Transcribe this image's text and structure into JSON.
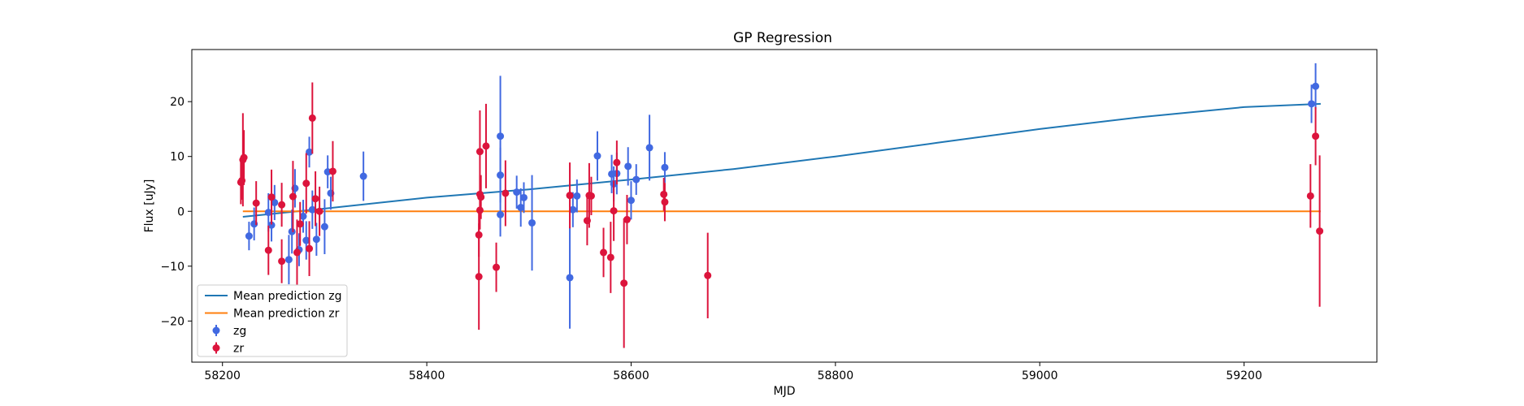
{
  "chart_data": {
    "type": "scatter",
    "title": "GP Regression",
    "xlabel": "MJD",
    "ylabel": "Flux [uJy]",
    "xlim": [
      58170,
      59330
    ],
    "ylim": [
      -27.5,
      29.5
    ],
    "xticks": [
      58200,
      58400,
      58600,
      58800,
      59000,
      59200
    ],
    "yticks": [
      -20,
      -10,
      0,
      10,
      20
    ],
    "grid": false,
    "legend_position": "lower-left",
    "legend": {
      "entries": [
        {
          "label": "Mean prediction zg",
          "kind": "line",
          "color": "#1f77b4"
        },
        {
          "label": "Mean prediction zr",
          "kind": "line",
          "color": "#ff7f0e"
        },
        {
          "label": "zg",
          "kind": "errorbar",
          "color": "#4169e1"
        },
        {
          "label": "zr",
          "kind": "errorbar",
          "color": "#dc143c"
        }
      ]
    },
    "lines": [
      {
        "name": "Mean prediction zg",
        "color": "#1f77b4",
        "x": [
          58220,
          58300,
          58400,
          58500,
          58600,
          58700,
          58800,
          58900,
          59000,
          59100,
          59200,
          59275
        ],
        "y": [
          -1.0,
          0.5,
          2.5,
          4.0,
          5.8,
          7.7,
          10.0,
          12.5,
          15.0,
          17.2,
          19.0,
          19.6
        ]
      },
      {
        "name": "Mean prediction zr",
        "color": "#ff7f0e",
        "x": [
          58220,
          59275
        ],
        "y": [
          0.0,
          0.0
        ]
      }
    ],
    "series": [
      {
        "name": "zg",
        "color": "#4169e1",
        "points": [
          {
            "x": 58226,
            "y": -4.5,
            "err": 2.6
          },
          {
            "x": 58231,
            "y": -2.3,
            "err": 3.0
          },
          {
            "x": 58245,
            "y": -0.2,
            "err": 3.5
          },
          {
            "x": 58248,
            "y": -2.5,
            "err": 3.0
          },
          {
            "x": 58251,
            "y": 1.6,
            "err": 3.2
          },
          {
            "x": 58265,
            "y": -8.8,
            "err": 4.5
          },
          {
            "x": 58268,
            "y": -3.7,
            "err": 4.0
          },
          {
            "x": 58271,
            "y": 4.2,
            "err": 3.5
          },
          {
            "x": 58275,
            "y": -7.0,
            "err": 3.0
          },
          {
            "x": 58279,
            "y": -0.9,
            "err": 3.0
          },
          {
            "x": 58282,
            "y": -5.3,
            "err": 3.5
          },
          {
            "x": 58285,
            "y": 10.8,
            "err": 2.8
          },
          {
            "x": 58288,
            "y": 0.3,
            "err": 3.5
          },
          {
            "x": 58292,
            "y": -5.1,
            "err": 3.0
          },
          {
            "x": 58300,
            "y": -2.8,
            "err": 5.0
          },
          {
            "x": 58303,
            "y": 7.2,
            "err": 3.0
          },
          {
            "x": 58306,
            "y": 3.3,
            "err": 3.0
          },
          {
            "x": 58338,
            "y": 6.4,
            "err": 4.5
          },
          {
            "x": 58472,
            "y": 13.7,
            "err": 11.0
          },
          {
            "x": 58472,
            "y": 6.6,
            "err": 5.0
          },
          {
            "x": 58472,
            "y": -0.6,
            "err": 4.0
          },
          {
            "x": 58488,
            "y": 3.5,
            "err": 3.0
          },
          {
            "x": 58492,
            "y": 0.7,
            "err": 3.5
          },
          {
            "x": 58495,
            "y": 2.5,
            "err": 2.8
          },
          {
            "x": 58503,
            "y": -2.1,
            "err": 8.7
          },
          {
            "x": 58540,
            "y": -12.1,
            "err": 9.3
          },
          {
            "x": 58543,
            "y": 0.3,
            "err": 3.2
          },
          {
            "x": 58547,
            "y": 2.8,
            "err": 3.0
          },
          {
            "x": 58567,
            "y": 10.1,
            "err": 4.5
          },
          {
            "x": 58581,
            "y": 6.8,
            "err": 3.5
          },
          {
            "x": 58583,
            "y": 5.0,
            "err": 3.2
          },
          {
            "x": 58586,
            "y": 6.9,
            "err": 3.8
          },
          {
            "x": 58597,
            "y": 8.2,
            "err": 3.5
          },
          {
            "x": 58600,
            "y": 2.0,
            "err": 3.5
          },
          {
            "x": 58605,
            "y": 5.8,
            "err": 2.8
          },
          {
            "x": 58618,
            "y": 11.6,
            "err": 6.0
          },
          {
            "x": 58633,
            "y": 8.0,
            "err": 2.8
          },
          {
            "x": 59266,
            "y": 19.6,
            "err": 3.5
          },
          {
            "x": 59270,
            "y": 22.8,
            "err": 4.2
          }
        ]
      },
      {
        "name": "zr",
        "color": "#dc143c",
        "points": [
          {
            "x": 58218,
            "y": 5.3,
            "err": 4.0
          },
          {
            "x": 58219,
            "y": 5.6,
            "err": 3.5
          },
          {
            "x": 58220,
            "y": 9.4,
            "err": 8.5
          },
          {
            "x": 58221,
            "y": 9.8,
            "err": 5.0
          },
          {
            "x": 58233,
            "y": 1.5,
            "err": 4.0
          },
          {
            "x": 58245,
            "y": -7.1,
            "err": 4.5
          },
          {
            "x": 58248,
            "y": 2.6,
            "err": 5.0
          },
          {
            "x": 58258,
            "y": -9.1,
            "err": 4.0
          },
          {
            "x": 58258,
            "y": 1.2,
            "err": 4.0
          },
          {
            "x": 58269,
            "y": 2.7,
            "err": 6.5
          },
          {
            "x": 58273,
            "y": -7.5,
            "err": 6.0
          },
          {
            "x": 58276,
            "y": -2.3,
            "err": 4.0
          },
          {
            "x": 58282,
            "y": 5.1,
            "err": 5.5
          },
          {
            "x": 58285,
            "y": -6.8,
            "err": 5.0
          },
          {
            "x": 58288,
            "y": 17.0,
            "err": 6.5
          },
          {
            "x": 58291,
            "y": 2.3,
            "err": 5.0
          },
          {
            "x": 58295,
            "y": 0.0,
            "err": 4.5
          },
          {
            "x": 58308,
            "y": 7.3,
            "err": 5.5
          },
          {
            "x": 58451,
            "y": -11.9,
            "err": 9.7
          },
          {
            "x": 58451,
            "y": -4.3,
            "err": 4.0
          },
          {
            "x": 58452,
            "y": 0.2,
            "err": 3.5
          },
          {
            "x": 58452,
            "y": 3.1,
            "err": 3.5
          },
          {
            "x": 58453,
            "y": 2.6,
            "err": 4.0
          },
          {
            "x": 58452,
            "y": 10.9,
            "err": 7.5
          },
          {
            "x": 58458,
            "y": 11.9,
            "err": 7.7
          },
          {
            "x": 58468,
            "y": -10.2,
            "err": 4.5
          },
          {
            "x": 58477,
            "y": 3.3,
            "err": 6.0
          },
          {
            "x": 58540,
            "y": 2.9,
            "err": 6.0
          },
          {
            "x": 58557,
            "y": -1.7,
            "err": 4.5
          },
          {
            "x": 58559,
            "y": 2.9,
            "err": 5.9
          },
          {
            "x": 58561,
            "y": 2.8,
            "err": 3.5
          },
          {
            "x": 58573,
            "y": -7.5,
            "err": 4.5
          },
          {
            "x": 58580,
            "y": -8.4,
            "err": 6.5
          },
          {
            "x": 58583,
            "y": 0.1,
            "err": 5.5
          },
          {
            "x": 58586,
            "y": 8.9,
            "err": 4.0
          },
          {
            "x": 58593,
            "y": -13.1,
            "err": 11.8
          },
          {
            "x": 58596,
            "y": -1.5,
            "err": 4.5
          },
          {
            "x": 58632,
            "y": 3.1,
            "err": 3.0
          },
          {
            "x": 58633,
            "y": 1.7,
            "err": 3.5
          },
          {
            "x": 58675,
            "y": -11.7,
            "err": 7.8
          },
          {
            "x": 59265,
            "y": 2.8,
            "err": 5.8
          },
          {
            "x": 59270,
            "y": 13.7,
            "err": 5.3
          },
          {
            "x": 59274,
            "y": -3.6,
            "err": 13.8
          }
        ]
      }
    ]
  }
}
